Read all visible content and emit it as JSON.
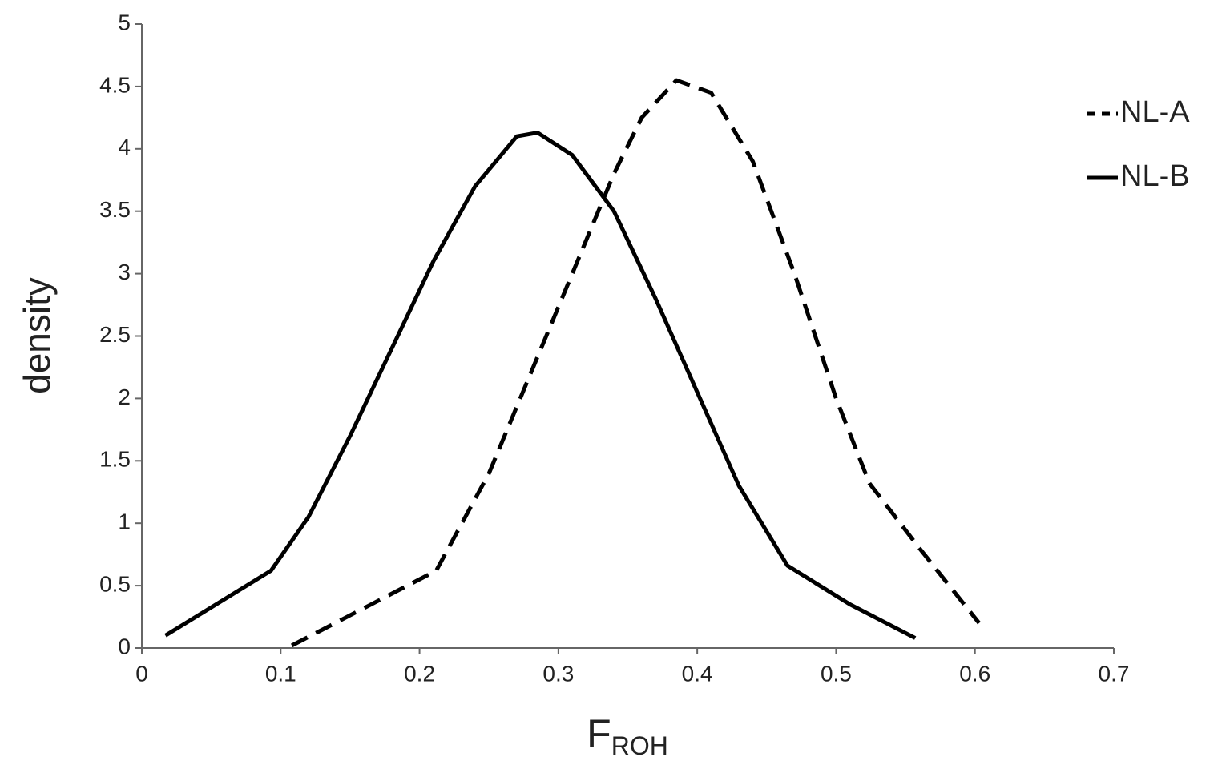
{
  "chart_data": {
    "type": "line",
    "x_label": "F",
    "x_label_subscript": "ROH",
    "y_label": "density",
    "xlim": [
      0,
      0.7
    ],
    "xticks": [
      0,
      0.1,
      0.2,
      0.3,
      0.4,
      0.5,
      0.6,
      0.7
    ],
    "ylim": [
      0,
      5
    ],
    "yticks": [
      0,
      0.5,
      1,
      1.5,
      2,
      2.5,
      3,
      3.5,
      4,
      4.5,
      5
    ],
    "legend": "top-right",
    "series": [
      {
        "name": "NL-A",
        "color": "#000000",
        "dash": "dashed",
        "x": [
          0.108,
          0.212,
          0.25,
          0.28,
          0.31,
          0.34,
          0.36,
          0.385,
          0.41,
          0.44,
          0.47,
          0.5,
          0.524,
          0.56,
          0.603
        ],
        "values": [
          0.02,
          0.62,
          1.4,
          2.2,
          3.0,
          3.8,
          4.25,
          4.55,
          4.45,
          3.9,
          3.0,
          2.0,
          1.32,
          0.8,
          0.2
        ]
      },
      {
        "name": "NL-B",
        "color": "#000000",
        "dash": "solid",
        "x": [
          0.017,
          0.093,
          0.12,
          0.15,
          0.18,
          0.21,
          0.24,
          0.27,
          0.285,
          0.31,
          0.34,
          0.37,
          0.4,
          0.43,
          0.465,
          0.51,
          0.557
        ],
        "values": [
          0.1,
          0.62,
          1.05,
          1.7,
          2.4,
          3.1,
          3.7,
          4.1,
          4.13,
          3.95,
          3.5,
          2.8,
          2.05,
          1.3,
          0.66,
          0.35,
          0.08
        ]
      }
    ]
  }
}
